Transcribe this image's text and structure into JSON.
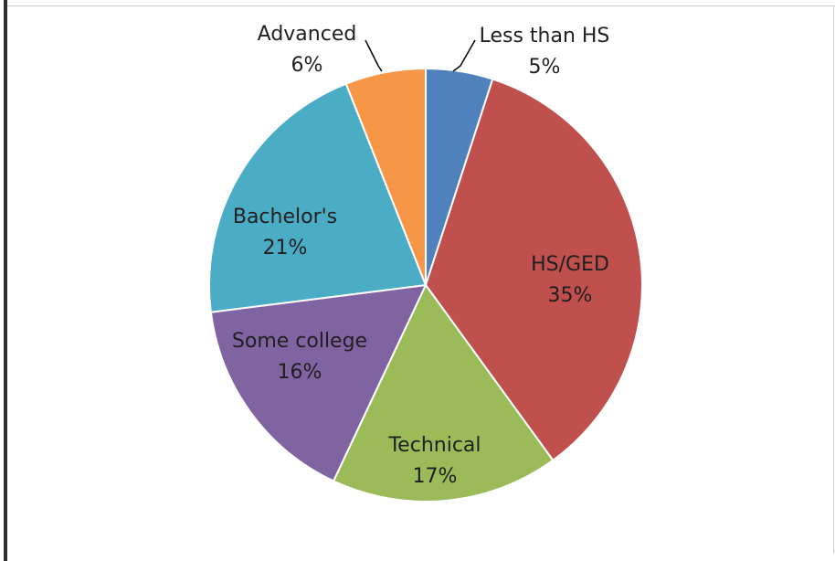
{
  "chart_data": {
    "type": "pie",
    "title": "",
    "start_angle_deg": 0,
    "direction": "clockwise",
    "slices": [
      {
        "label": "Less than HS",
        "value": 5,
        "value_label": "5%",
        "color": "#4f81bd"
      },
      {
        "label": "HS/GED",
        "value": 35,
        "value_label": "35%",
        "color": "#c0504d"
      },
      {
        "label": "Technical",
        "value": 17,
        "value_label": "17%",
        "color": "#9bbb59"
      },
      {
        "label": "Some college",
        "value": 16,
        "value_label": "16%",
        "color": "#8064a2"
      },
      {
        "label": "Bachelor's",
        "value": 21,
        "value_label": "21%",
        "color": "#4bacc6"
      },
      {
        "label": "Advanced",
        "value": 6,
        "value_label": "6%",
        "color": "#f79646"
      }
    ]
  }
}
